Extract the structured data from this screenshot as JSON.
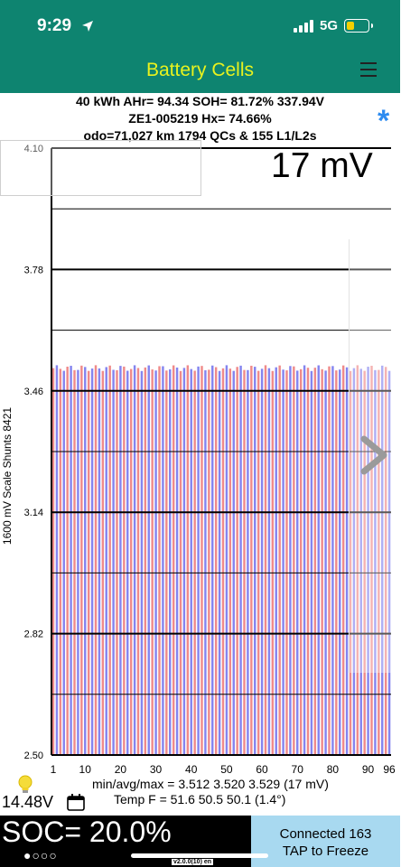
{
  "status_bar": {
    "time": "9:29",
    "network": "5G"
  },
  "nav": {
    "title": "Battery Cells"
  },
  "info": {
    "line1": "40 kWh  AHr= 94.34  SOH= 81.72%   337.94V",
    "line2": "ZE1-005219   Hx= 74.66%",
    "line3": "odo=71,027 km 1794 QCs & 155 L1/L2s"
  },
  "chart": {
    "spread_label": "17 mV",
    "y_axis_label": "1600 mV Scale   Shunts 8421",
    "min_avg_max": "min/avg/max = 3.512  3.520  3.529  (17 mV)",
    "temps": "Temp F = 51.6  50.5  50.1  (1.4°)"
  },
  "chart_data": {
    "type": "bar",
    "ylim": [
      2.5,
      4.1
    ],
    "yticks": [
      "4.10",
      "3.78",
      "3.46",
      "3.14",
      "2.82",
      "2.50"
    ],
    "xticks": [
      "1",
      "10",
      "20",
      "30",
      "40",
      "50",
      "60",
      "70",
      "80",
      "90",
      "96"
    ],
    "cell_count": 96,
    "min": 3.512,
    "avg": 3.52,
    "max": 3.529,
    "colors": [
      "#ef8a8a",
      "#8484ef"
    ]
  },
  "footer": {
    "aux_voltage": "14.48V",
    "soc": "SOC= 20.0%",
    "dots": "●○○○",
    "connected": "Connected 163",
    "tap": "TAP to Freeze",
    "version": "v2.0.0(10) en"
  }
}
